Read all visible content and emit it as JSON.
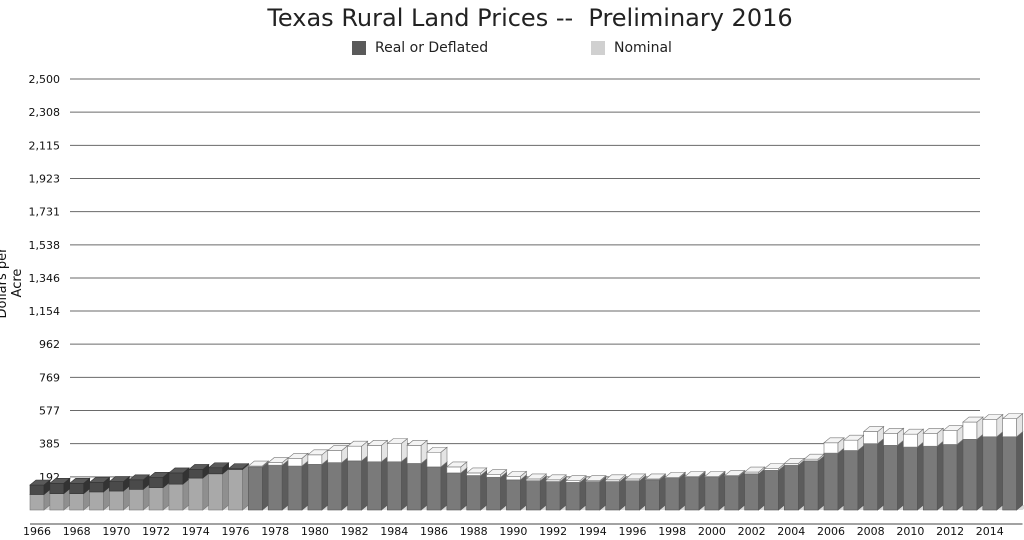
{
  "chart_data": {
    "type": "bar",
    "title": "Texas Rural Land Prices --  Preliminary 2016",
    "xlabel": "",
    "ylabel": "Dollars per Acre",
    "ylim": [
      0,
      2500
    ],
    "y_ticks": [
      "192",
      "385",
      "577",
      "769",
      "962",
      "1,154",
      "1,346",
      "1,538",
      "1,731",
      "1,923",
      "2,115",
      "2,308",
      "2,500"
    ],
    "y_tick_values": [
      192,
      385,
      577,
      769,
      962,
      1154,
      1346,
      1538,
      1731,
      1923,
      2115,
      2308,
      2500
    ],
    "x_tick_labels": [
      "1966",
      "1968",
      "1970",
      "1972",
      "1974",
      "1976",
      "1978",
      "1980",
      "1982",
      "1984",
      "1986",
      "1988",
      "1990",
      "1992",
      "1994",
      "1996",
      "1998",
      "2000",
      "2002",
      "2004",
      "2006",
      "2008",
      "2010",
      "2012",
      "2014"
    ],
    "grid": true,
    "legend_position": "top",
    "categories": [
      "1966",
      "1967",
      "1968",
      "1969",
      "1970",
      "1971",
      "1972",
      "1973",
      "1974",
      "1975",
      "1976",
      "1977",
      "1978",
      "1979",
      "1980",
      "1981",
      "1982",
      "1983",
      "1984",
      "1985",
      "1986",
      "1987",
      "1988",
      "1989",
      "1990",
      "1991",
      "1992",
      "1993",
      "1994",
      "1995",
      "1996",
      "1997",
      "1998",
      "1999",
      "2000",
      "2001",
      "2002",
      "2003",
      "2004",
      "2005",
      "2006",
      "2007",
      "2008",
      "2009",
      "2010",
      "2011",
      "2012",
      "2013",
      "2014",
      "2015"
    ],
    "series": [
      {
        "name": "Real or Deflated",
        "color": "#5a5a5a",
        "values": [
          145,
          155,
          155,
          160,
          165,
          175,
          190,
          215,
          235,
          245,
          240,
          250,
          260,
          255,
          265,
          275,
          285,
          280,
          280,
          270,
          250,
          215,
          200,
          190,
          175,
          170,
          165,
          160,
          165,
          165,
          170,
          175,
          185,
          190,
          190,
          195,
          210,
          230,
          260,
          285,
          330,
          345,
          385,
          375,
          365,
          370,
          380,
          410,
          425,
          425
        ]
      },
      {
        "name": "Nominal",
        "color": "#d0d0d0",
        "values": [
          90,
          95,
          95,
          105,
          110,
          120,
          130,
          150,
          185,
          210,
          235,
          255,
          275,
          300,
          320,
          345,
          370,
          375,
          385,
          375,
          335,
          250,
          215,
          205,
          195,
          180,
          175,
          170,
          170,
          175,
          180,
          180,
          190,
          195,
          195,
          200,
          220,
          240,
          270,
          295,
          390,
          405,
          455,
          445,
          440,
          445,
          460,
          510,
          525,
          530
        ]
      }
    ]
  }
}
